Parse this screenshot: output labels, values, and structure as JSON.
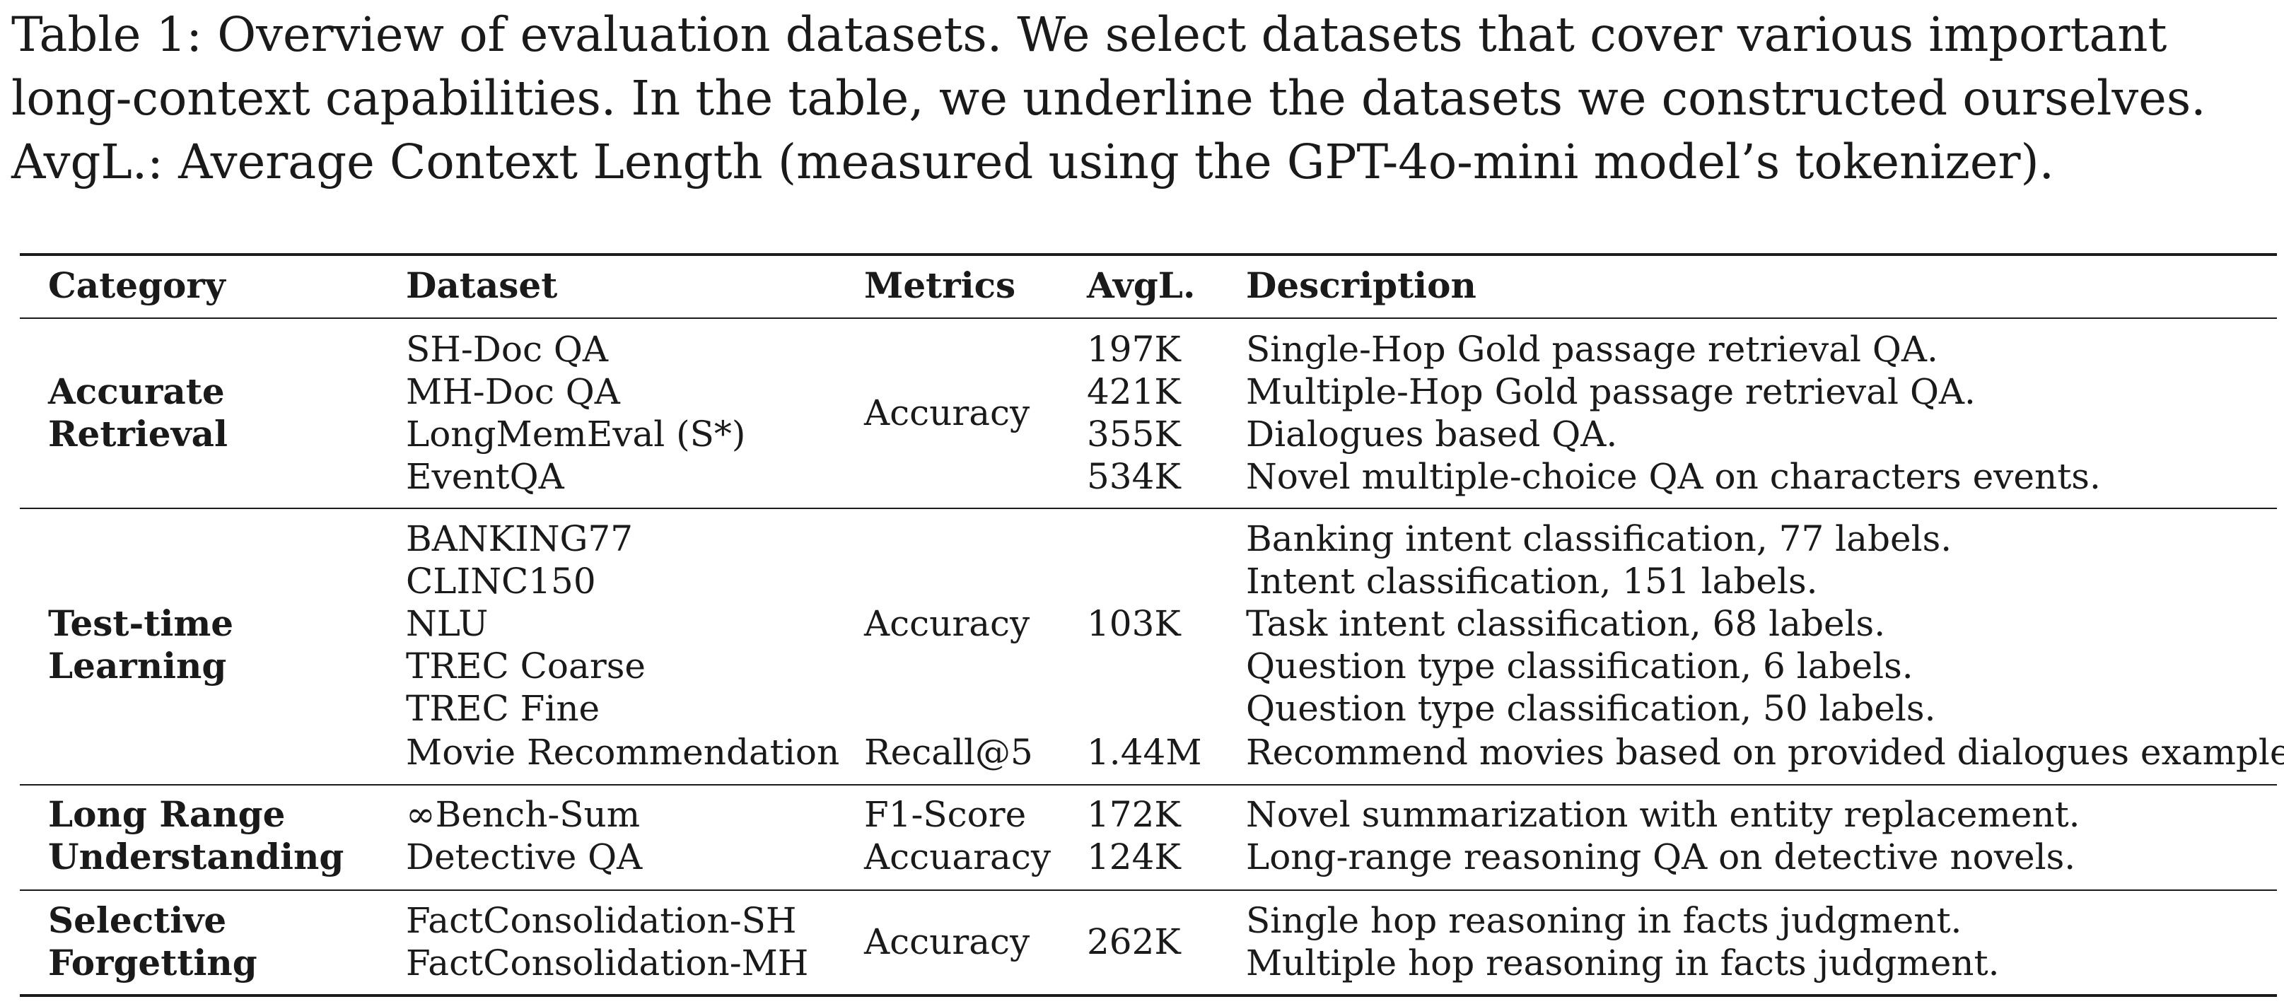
{
  "caption": {
    "lines": [
      "Table 1: Overview of evaluation datasets. We select datasets that cover various important",
      "long-context capabilities. In the table, we underline the datasets we constructed ourselves.",
      "AvgL.: Average Context Length (measured using the GPT-4o-mini model’s tokenizer)."
    ]
  },
  "table": {
    "headers": [
      "Category",
      "Dataset",
      "Metrics",
      "AvgL.",
      "Description"
    ],
    "groups": [
      {
        "category": [
          "Accurate",
          "Retrieval"
        ],
        "metrics": [
          "Accuracy"
        ],
        "rows": [
          {
            "dataset": "SH-Doc QA",
            "avgl": "197K",
            "description": "Single-Hop Gold passage retrieval QA."
          },
          {
            "dataset": "MH-Doc QA",
            "avgl": "421K",
            "description": "Multiple-Hop Gold passage retrieval QA."
          },
          {
            "dataset": "LongMemEval (S*)",
            "avgl": "355K",
            "description": "Dialogues based QA."
          },
          {
            "dataset": "EventQA",
            "avgl": "534K",
            "description": "Novel multiple-choice QA on characters events."
          }
        ]
      },
      {
        "category": [
          "Test-time",
          "Learning"
        ],
        "metrics": [
          "Accuracy",
          "Recall@5"
        ],
        "avgl_shared": "103K",
        "rows": [
          {
            "dataset": "BANKING77",
            "description": "Banking intent classification, 77 labels."
          },
          {
            "dataset": "CLINC150",
            "description": "Intent classification, 151 labels."
          },
          {
            "dataset": "NLU",
            "description": "Task intent classification, 68 labels."
          },
          {
            "dataset": "TREC Coarse",
            "description": "Question type classification, 6 labels."
          },
          {
            "dataset": "TREC Fine",
            "description": "Question type classification, 50 labels."
          },
          {
            "dataset": "Movie Recommendation",
            "avgl": "1.44M",
            "description": "Recommend movies based on provided dialogues examples."
          }
        ]
      },
      {
        "category": [
          "Long Range",
          "Understanding"
        ],
        "rows": [
          {
            "dataset": "∞Bench-Sum",
            "metric": "F1-Score",
            "avgl": "172K",
            "description": "Novel summarization with entity replacement."
          },
          {
            "dataset": "Detective QA",
            "metric": "Accuaracy",
            "avgl": "124K",
            "description": "Long-range reasoning QA on detective novels."
          }
        ]
      },
      {
        "category": [
          "Selective",
          "Forgetting"
        ],
        "metrics": [
          "Accuracy"
        ],
        "avgl_shared": "262K",
        "rows": [
          {
            "dataset": "FactConsolidation-SH",
            "description": "Single hop reasoning in facts judgment."
          },
          {
            "dataset": "FactConsolidation-MH",
            "description": "Multiple hop reasoning in facts judgment."
          }
        ]
      }
    ]
  }
}
